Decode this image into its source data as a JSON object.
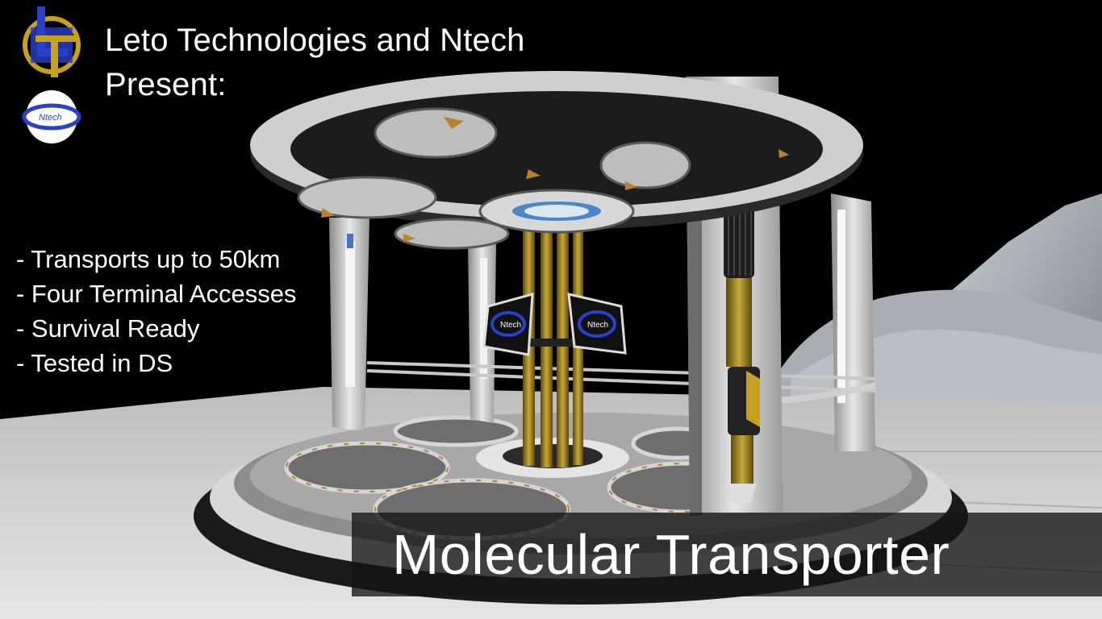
{
  "header": {
    "title_line1": "Leto Technologies and Ntech",
    "title_line2": "Present:"
  },
  "logos": {
    "leto_logo_icon": "letters LT",
    "ntech_logo_label": "Ntech"
  },
  "features": [
    "- Transports up to 50km",
    "- Four Terminal Accesses",
    "- Survival Ready",
    "- Tested in DS"
  ],
  "banner": {
    "title": "Molecular Transporter"
  },
  "terminals": {
    "left_label": "Ntech",
    "right_label": "Ntech"
  },
  "colors": {
    "background": "#000000",
    "accent_gold": "#c8a020",
    "accent_blue": "#2a40c8",
    "hull_grey": "#cfcfcf"
  }
}
